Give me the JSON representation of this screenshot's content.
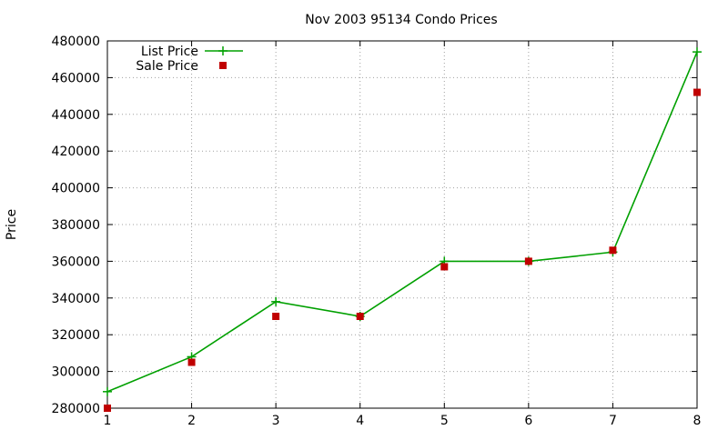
{
  "chart_data": {
    "type": "line",
    "title": "Nov 2003 95134 Condo Prices",
    "xlabel": "",
    "ylabel": "Price",
    "x": [
      1,
      2,
      3,
      4,
      5,
      6,
      7,
      8
    ],
    "xlim": [
      1,
      8
    ],
    "ylim": [
      280000,
      480000
    ],
    "x_ticks": [
      1,
      2,
      3,
      4,
      5,
      6,
      7,
      8
    ],
    "y_ticks": [
      280000,
      300000,
      320000,
      340000,
      360000,
      380000,
      400000,
      420000,
      440000,
      460000,
      480000
    ],
    "grid": true,
    "legend_position": "top-left",
    "series": [
      {
        "name": "List Price",
        "style": "lines+points",
        "marker": "plus",
        "color": "#00a000",
        "values": [
          289000,
          308000,
          338000,
          330000,
          360000,
          360000,
          365000,
          474000
        ]
      },
      {
        "name": "Sale Price",
        "style": "points",
        "marker": "square",
        "color": "#c00000",
        "values": [
          280000,
          305000,
          330000,
          330000,
          357000,
          360000,
          366000,
          452000
        ]
      }
    ]
  }
}
